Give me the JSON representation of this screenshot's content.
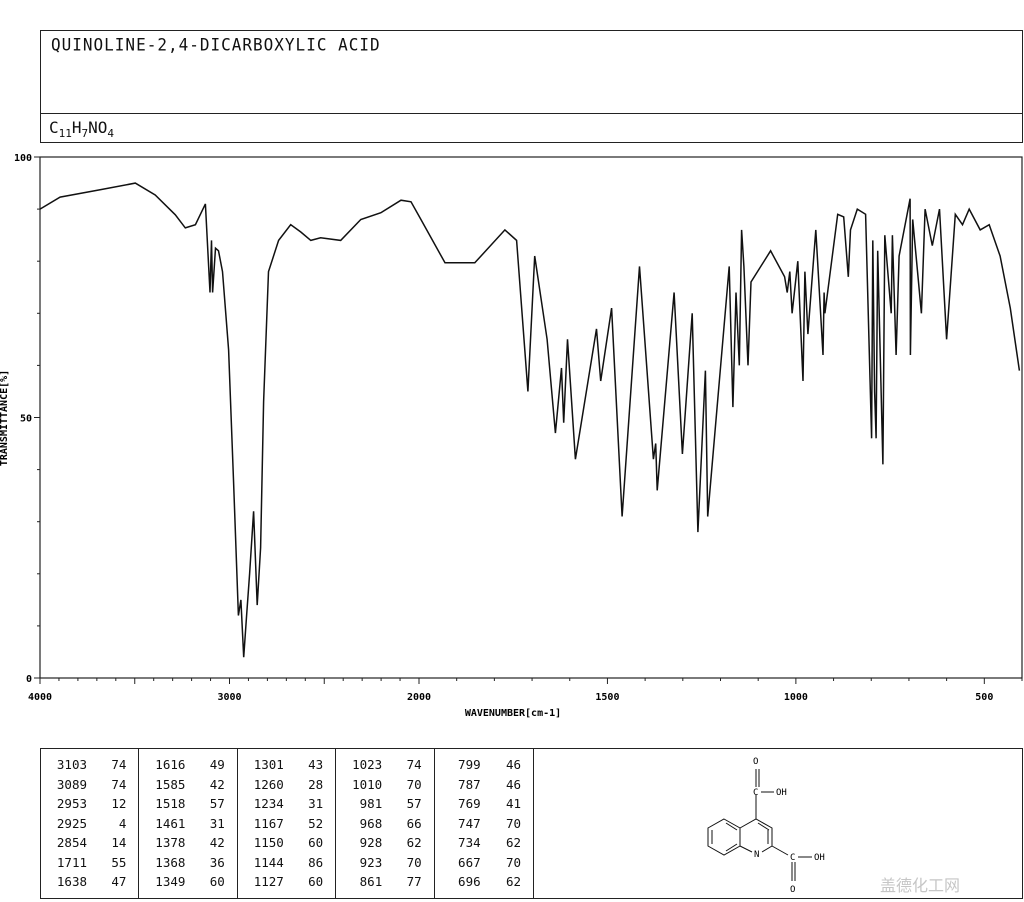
{
  "header": {
    "compound_name": "QUINOLINE-2,4-DICARBOXYLIC ACID",
    "formula": "C11H7NO4"
  },
  "chart_data": {
    "type": "line",
    "title": "QUINOLINE-2,4-DICARBOXYLIC ACID",
    "xlabel": "WAVENUMBER[cm-1]",
    "ylabel": "TRANSMITTANCE[%]",
    "xlim": [
      4000,
      400
    ],
    "ylim": [
      0,
      100
    ],
    "x_scale_note": "axis scale doubles below 2000",
    "x_ticks": [
      "4000",
      "3000",
      "2000",
      "1500",
      "1000",
      "500"
    ],
    "y_ticks": [
      "100",
      "50",
      "0"
    ],
    "grid": false,
    "line_color": "#111111",
    "series": [
      {
        "points": [
          [
            4000,
            90
          ],
          [
            3894,
            92.3
          ],
          [
            3683,
            93.7
          ],
          [
            3497,
            95
          ],
          [
            3392,
            92.7
          ],
          [
            3286,
            88.9
          ],
          [
            3233,
            86.4
          ],
          [
            3180,
            87
          ],
          [
            3127,
            91
          ],
          [
            3103,
            74
          ],
          [
            3095,
            84
          ],
          [
            3089,
            74
          ],
          [
            3074,
            82.5
          ],
          [
            3058,
            82
          ],
          [
            3037,
            78
          ],
          [
            3005,
            63
          ],
          [
            2979,
            38
          ],
          [
            2953,
            12
          ],
          [
            2940,
            15
          ],
          [
            2925,
            4
          ],
          [
            2910,
            12
          ],
          [
            2894,
            20
          ],
          [
            2873,
            32
          ],
          [
            2854,
            14
          ],
          [
            2836,
            25
          ],
          [
            2820,
            53
          ],
          [
            2794,
            78
          ],
          [
            2741,
            84
          ],
          [
            2677,
            87
          ],
          [
            2624,
            85.6
          ],
          [
            2571,
            84
          ],
          [
            2519,
            84.5
          ],
          [
            2413,
            84
          ],
          [
            2307,
            88
          ],
          [
            2201,
            89.3
          ],
          [
            2095,
            91.7
          ],
          [
            2042,
            91.4
          ],
          [
            1997,
            88.3
          ],
          [
            1931,
            79.7
          ],
          [
            1852,
            79.7
          ],
          [
            1772,
            86
          ],
          [
            1741,
            84
          ],
          [
            1711,
            55
          ],
          [
            1693,
            81
          ],
          [
            1660,
            65
          ],
          [
            1638,
            47
          ],
          [
            1622,
            59.5
          ],
          [
            1616,
            49
          ],
          [
            1606,
            65
          ],
          [
            1585,
            42
          ],
          [
            1529,
            67
          ],
          [
            1518,
            57
          ],
          [
            1489,
            71
          ],
          [
            1461,
            31
          ],
          [
            1415,
            79
          ],
          [
            1378,
            42
          ],
          [
            1372,
            45
          ],
          [
            1368,
            36
          ],
          [
            1323,
            74
          ],
          [
            1301,
            43
          ],
          [
            1275,
            70
          ],
          [
            1260,
            28
          ],
          [
            1240,
            59
          ],
          [
            1234,
            31
          ],
          [
            1177,
            79
          ],
          [
            1167,
            52
          ],
          [
            1159,
            74
          ],
          [
            1150,
            60
          ],
          [
            1144,
            86
          ],
          [
            1138,
            79
          ],
          [
            1127,
            60
          ],
          [
            1119,
            76
          ],
          [
            1067,
            82
          ],
          [
            1030,
            77
          ],
          [
            1023,
            74
          ],
          [
            1016,
            78
          ],
          [
            1010,
            70
          ],
          [
            995,
            80
          ],
          [
            981,
            57
          ],
          [
            976,
            78
          ],
          [
            968,
            66
          ],
          [
            947,
            86
          ],
          [
            928,
            62
          ],
          [
            925,
            74
          ],
          [
            923,
            70
          ],
          [
            889,
            89
          ],
          [
            873,
            88.5
          ],
          [
            861,
            77
          ],
          [
            855,
            86
          ],
          [
            837,
            90
          ],
          [
            815,
            89
          ],
          [
            799,
            46
          ],
          [
            796,
            84
          ],
          [
            791,
            55
          ],
          [
            787,
            46
          ],
          [
            783,
            82
          ],
          [
            769,
            41
          ],
          [
            764,
            85
          ],
          [
            747,
            70
          ],
          [
            744,
            85
          ],
          [
            734,
            62
          ],
          [
            726,
            81
          ],
          [
            697,
            92
          ],
          [
            696,
            62
          ],
          [
            690,
            88
          ],
          [
            667,
            70
          ],
          [
            657,
            90
          ],
          [
            638,
            83
          ],
          [
            619,
            90
          ],
          [
            600,
            65
          ],
          [
            577,
            89
          ],
          [
            558,
            87
          ],
          [
            540,
            90
          ],
          [
            511,
            86
          ],
          [
            487,
            87
          ],
          [
            458,
            81
          ],
          [
            431,
            71
          ],
          [
            407,
            59
          ]
        ]
      }
    ],
    "peak_table": [
      [
        [
          "3103",
          "74"
        ],
        [
          "3089",
          "74"
        ],
        [
          "2953",
          "12"
        ],
        [
          "2925",
          "4"
        ],
        [
          "2854",
          "14"
        ],
        [
          "1711",
          "55"
        ],
        [
          "1638",
          "47"
        ]
      ],
      [
        [
          "1616",
          "49"
        ],
        [
          "1585",
          "42"
        ],
        [
          "1518",
          "57"
        ],
        [
          "1461",
          "31"
        ],
        [
          "1378",
          "42"
        ],
        [
          "1368",
          "36"
        ],
        [
          "1349",
          "60"
        ]
      ],
      [
        [
          "1301",
          "43"
        ],
        [
          "1260",
          "28"
        ],
        [
          "1234",
          "31"
        ],
        [
          "1167",
          "52"
        ],
        [
          "1150",
          "60"
        ],
        [
          "1144",
          "86"
        ],
        [
          "1127",
          "60"
        ]
      ],
      [
        [
          "1023",
          "74"
        ],
        [
          "1010",
          "70"
        ],
        [
          "981",
          "57"
        ],
        [
          "968",
          "66"
        ],
        [
          "928",
          "62"
        ],
        [
          "923",
          "70"
        ],
        [
          "861",
          "77"
        ]
      ],
      [
        [
          "799",
          "46"
        ],
        [
          "787",
          "46"
        ],
        [
          "769",
          "41"
        ],
        [
          "747",
          "70"
        ],
        [
          "734",
          "62"
        ],
        [
          "667",
          "70"
        ],
        [
          "696",
          "62"
        ]
      ]
    ]
  },
  "structure": {
    "labels": {
      "o_top": "O",
      "oh_top": "OH",
      "n": "N",
      "o_bottom": "O",
      "oh_bottom": "OH",
      "c_top": "C",
      "c_bottom": "C"
    }
  },
  "watermark": "盖德化工网"
}
